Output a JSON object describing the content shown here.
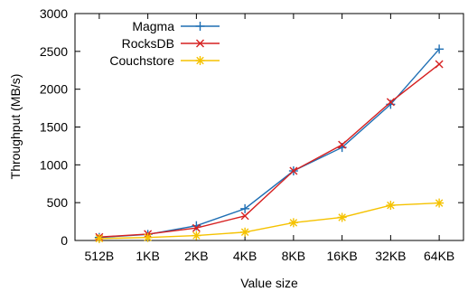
{
  "chart_data": {
    "type": "line",
    "title": "",
    "xlabel": "Value size",
    "ylabel": "Throughput (MB/s)",
    "categories": [
      "512B",
      "1KB",
      "2KB",
      "4KB",
      "8KB",
      "16KB",
      "32KB",
      "64KB"
    ],
    "ylim": [
      0,
      3000
    ],
    "yticks": [
      0,
      500,
      1000,
      1500,
      2000,
      2500,
      3000
    ],
    "grid": false,
    "legend": "top-left",
    "series": [
      {
        "name": "Magma",
        "color": "#1f6fb4",
        "marker": "plus",
        "values": [
          40,
          80,
          195,
          420,
          920,
          1230,
          1800,
          2530
        ]
      },
      {
        "name": "RocksDB",
        "color": "#d62020",
        "marker": "cross",
        "values": [
          45,
          85,
          165,
          325,
          920,
          1265,
          1830,
          2330
        ]
      },
      {
        "name": "Couchstore",
        "color": "#f5c200",
        "marker": "star",
        "values": [
          25,
          40,
          65,
          110,
          235,
          305,
          465,
          495
        ]
      }
    ]
  }
}
